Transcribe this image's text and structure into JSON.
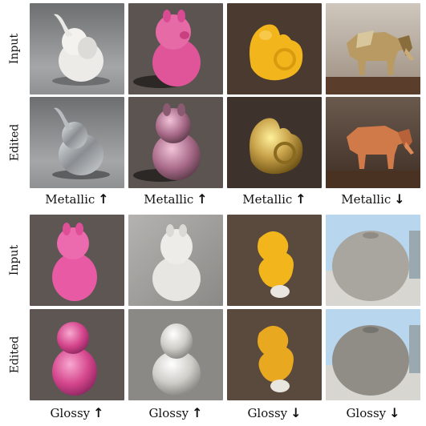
{
  "top_section": {
    "row_labels": [
      "Input",
      "Edited"
    ],
    "captions": [
      {
        "text": "Metallic",
        "arrow": "↑"
      },
      {
        "text": "Metallic",
        "arrow": "↑"
      },
      {
        "text": "Metallic",
        "arrow": "↑"
      },
      {
        "text": "Metallic",
        "arrow": "↓"
      }
    ]
  },
  "bottom_section": {
    "row_labels": [
      "Input",
      "Edited"
    ],
    "captions": [
      {
        "text": "Glossy",
        "arrow": "↑"
      },
      {
        "text": "Glossy",
        "arrow": "↑"
      },
      {
        "text": "Glossy",
        "arrow": "↓"
      },
      {
        "text": "Glossy",
        "arrow": "↓"
      }
    ]
  },
  "tile_descriptions": {
    "top_input": [
      "white-elephant-figurine",
      "pink-llama-toy",
      "yellow-seahorse-toy",
      "low-poly-gold-elephant"
    ],
    "top_edited": [
      "silver-elephant-figurine",
      "metallic-pink-llama-toy",
      "gold-seahorse-toy",
      "matte-copper-elephant"
    ],
    "bottom_input": [
      "pink-llama-toy",
      "white-llama-toy",
      "yellow-seahorse-toy",
      "grey-apple-sculpture"
    ],
    "bottom_edited": [
      "glossy-pink-llama-toy",
      "glossy-white-llama-toy",
      "matte-yellow-seahorse-toy",
      "matte-grey-apple-sculpture"
    ]
  },
  "colors": {
    "asphalt": "#5b5450",
    "studio_grey": "#8a8c8e",
    "pink": "#e0559a",
    "yellow": "#f2b51c",
    "gold": "#c8a24a",
    "copper": "#d07a4a",
    "silver": "#b8bcc0",
    "white_toy": "#e6e4e0",
    "sky": "#b9d6ef"
  }
}
